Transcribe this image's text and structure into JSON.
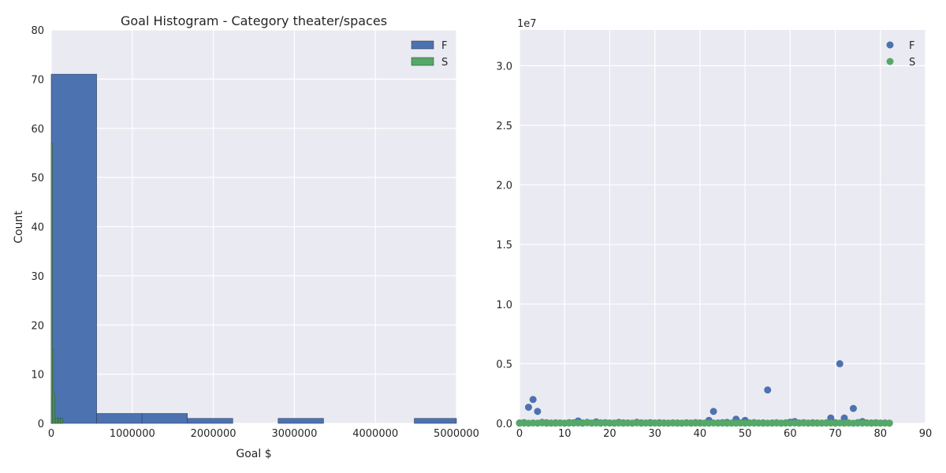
{
  "chart_data": [
    {
      "type": "bar",
      "title": "Goal Histogram - Category theater/spaces",
      "xlabel": "Goal $",
      "ylabel": "Count",
      "xlim": [
        0,
        5000000
      ],
      "ylim": [
        0,
        80
      ],
      "xticks": [
        "0",
        "1000000",
        "2000000",
        "3000000",
        "4000000",
        "5000000"
      ],
      "yticks": [
        "0",
        "10",
        "20",
        "30",
        "40",
        "50",
        "60",
        "70",
        "80"
      ],
      "grid": true,
      "legend": "top-right",
      "series": [
        {
          "name": "F",
          "color": "#4c72b0",
          "bins": [
            {
              "x0": 0,
              "x1": 560000,
              "count": 71
            },
            {
              "x0": 560000,
              "x1": 1120000,
              "count": 2
            },
            {
              "x0": 1120000,
              "x1": 1680000,
              "count": 2
            },
            {
              "x0": 1680000,
              "x1": 2240000,
              "count": 1
            },
            {
              "x0": 2240000,
              "x1": 2800000,
              "count": 0
            },
            {
              "x0": 2800000,
              "x1": 3360000,
              "count": 1
            },
            {
              "x0": 3360000,
              "x1": 3920000,
              "count": 0
            },
            {
              "x0": 3920000,
              "x1": 4480000,
              "count": 0
            },
            {
              "x0": 4480000,
              "x1": 5040000,
              "count": 1
            }
          ]
        },
        {
          "name": "S",
          "color": "#55a868",
          "bins": [
            {
              "x0": 0,
              "x1": 14000,
              "count": 57
            },
            {
              "x0": 14000,
              "x1": 28000,
              "count": 15
            },
            {
              "x0": 28000,
              "x1": 42000,
              "count": 6
            },
            {
              "x0": 42000,
              "x1": 56000,
              "count": 1
            },
            {
              "x0": 56000,
              "x1": 70000,
              "count": 1
            },
            {
              "x0": 70000,
              "x1": 84000,
              "count": 1
            },
            {
              "x0": 84000,
              "x1": 98000,
              "count": 1
            },
            {
              "x0": 98000,
              "x1": 112000,
              "count": 1
            },
            {
              "x0": 112000,
              "x1": 126000,
              "count": 1
            },
            {
              "x0": 126000,
              "x1": 140000,
              "count": 1
            }
          ]
        }
      ]
    },
    {
      "type": "scatter",
      "xlim": [
        0,
        90
      ],
      "ylim": [
        0,
        33000000
      ],
      "offset_label": "1e7",
      "xticks": [
        "0",
        "10",
        "20",
        "30",
        "40",
        "50",
        "60",
        "70",
        "80",
        "90"
      ],
      "yticks": [
        "0.0",
        "0.5",
        "1.0",
        "1.5",
        "2.0",
        "2.5",
        "3.0"
      ],
      "grid": true,
      "legend": "top-right",
      "series": [
        {
          "name": "F",
          "color": "#4c72b0",
          "points": [
            [
              0,
              30000
            ],
            [
              1,
              60000
            ],
            [
              2,
              1350000
            ],
            [
              3,
              2000000
            ],
            [
              4,
              1000000
            ],
            [
              5,
              80000
            ],
            [
              6,
              50000
            ],
            [
              7,
              20000
            ],
            [
              8,
              40000
            ],
            [
              9,
              30000
            ],
            [
              10,
              15000
            ],
            [
              11,
              60000
            ],
            [
              12,
              50000
            ],
            [
              13,
              200000
            ],
            [
              14,
              30000
            ],
            [
              15,
              80000
            ],
            [
              16,
              25000
            ],
            [
              17,
              120000
            ],
            [
              18,
              40000
            ],
            [
              19,
              60000
            ],
            [
              20,
              35000
            ],
            [
              21,
              25000
            ],
            [
              22,
              80000
            ],
            [
              23,
              45000
            ],
            [
              24,
              30000
            ],
            [
              25,
              20000
            ],
            [
              26,
              90000
            ],
            [
              27,
              40000
            ],
            [
              28,
              30000
            ],
            [
              29,
              60000
            ],
            [
              30,
              25000
            ],
            [
              31,
              50000
            ],
            [
              32,
              35000
            ],
            [
              33,
              20000
            ],
            [
              34,
              40000
            ],
            [
              35,
              30000
            ],
            [
              36,
              15000
            ],
            [
              37,
              50000
            ],
            [
              38,
              25000
            ],
            [
              39,
              60000
            ],
            [
              40,
              40000
            ],
            [
              41,
              20000
            ],
            [
              42,
              250000
            ],
            [
              43,
              1000000
            ],
            [
              44,
              30000
            ],
            [
              45,
              60000
            ],
            [
              46,
              80000
            ],
            [
              47,
              20000
            ],
            [
              48,
              350000
            ],
            [
              49,
              40000
            ],
            [
              50,
              250000
            ],
            [
              51,
              30000
            ],
            [
              52,
              60000
            ],
            [
              53,
              25000
            ],
            [
              54,
              40000
            ],
            [
              55,
              2800000
            ],
            [
              56,
              30000
            ],
            [
              57,
              50000
            ],
            [
              58,
              20000
            ],
            [
              59,
              40000
            ],
            [
              60,
              100000
            ],
            [
              61,
              150000
            ],
            [
              62,
              30000
            ],
            [
              63,
              60000
            ],
            [
              64,
              25000
            ],
            [
              65,
              50000
            ],
            [
              66,
              30000
            ],
            [
              67,
              20000
            ],
            [
              68,
              40000
            ],
            [
              69,
              450000
            ],
            [
              70,
              60000
            ],
            [
              71,
              5000000
            ],
            [
              72,
              450000
            ],
            [
              73,
              30000
            ],
            [
              74,
              1250000
            ],
            [
              75,
              60000
            ],
            [
              76,
              150000
            ],
            [
              77,
              40000
            ],
            [
              78,
              30000
            ],
            [
              79,
              50000
            ],
            [
              80,
              25000
            ],
            [
              81,
              30000
            ],
            [
              82,
              20000
            ]
          ]
        },
        {
          "name": "S",
          "color": "#55a868",
          "points": [
            [
              0,
              10000
            ],
            [
              1,
              20000
            ],
            [
              2,
              8000
            ],
            [
              3,
              30000
            ],
            [
              4,
              15000
            ],
            [
              5,
              40000
            ],
            [
              6,
              12000
            ],
            [
              7,
              25000
            ],
            [
              8,
              9000
            ],
            [
              9,
              35000
            ],
            [
              10,
              14000
            ],
            [
              11,
              22000
            ],
            [
              12,
              18000
            ],
            [
              13,
              30000
            ],
            [
              14,
              10000
            ],
            [
              15,
              45000
            ],
            [
              16,
              16000
            ],
            [
              17,
              25000
            ],
            [
              18,
              12000
            ],
            [
              19,
              30000
            ],
            [
              20,
              20000
            ],
            [
              21,
              15000
            ],
            [
              22,
              28000
            ],
            [
              23,
              10000
            ],
            [
              24,
              35000
            ],
            [
              25,
              18000
            ],
            [
              26,
              40000
            ],
            [
              27,
              12000
            ],
            [
              28,
              25000
            ],
            [
              29,
              15000
            ],
            [
              30,
              30000
            ],
            [
              31,
              10000
            ],
            [
              32,
              20000
            ],
            [
              33,
              15000
            ],
            [
              34,
              25000
            ],
            [
              35,
              12000
            ],
            [
              36,
              18000
            ],
            [
              37,
              30000
            ],
            [
              38,
              10000
            ],
            [
              39,
              22000
            ],
            [
              40,
              15000
            ],
            [
              41,
              25000
            ],
            [
              42,
              12000
            ],
            [
              43,
              30000
            ],
            [
              44,
              18000
            ],
            [
              45,
              20000
            ],
            [
              46,
              10000
            ],
            [
              47,
              28000
            ],
            [
              48,
              15000
            ],
            [
              49,
              22000
            ],
            [
              50,
              12000
            ],
            [
              51,
              30000
            ],
            [
              52,
              18000
            ],
            [
              53,
              25000
            ],
            [
              54,
              10000
            ],
            [
              55,
              20000
            ],
            [
              56,
              15000
            ],
            [
              57,
              28000
            ],
            [
              58,
              12000
            ],
            [
              59,
              22000
            ],
            [
              60,
              18000
            ],
            [
              61,
              25000
            ],
            [
              62,
              10000
            ],
            [
              63,
              30000
            ],
            [
              64,
              15000
            ],
            [
              65,
              20000
            ],
            [
              66,
              12000
            ],
            [
              67,
              28000
            ],
            [
              68,
              18000
            ],
            [
              69,
              22000
            ],
            [
              70,
              10000
            ],
            [
              71,
              25000
            ],
            [
              72,
              15000
            ],
            [
              73,
              30000
            ],
            [
              74,
              12000
            ],
            [
              75,
              20000
            ],
            [
              76,
              18000
            ],
            [
              77,
              25000
            ],
            [
              78,
              10000
            ],
            [
              79,
              22000
            ],
            [
              80,
              15000
            ],
            [
              81,
              20000
            ],
            [
              82,
              12000
            ]
          ]
        }
      ]
    }
  ]
}
